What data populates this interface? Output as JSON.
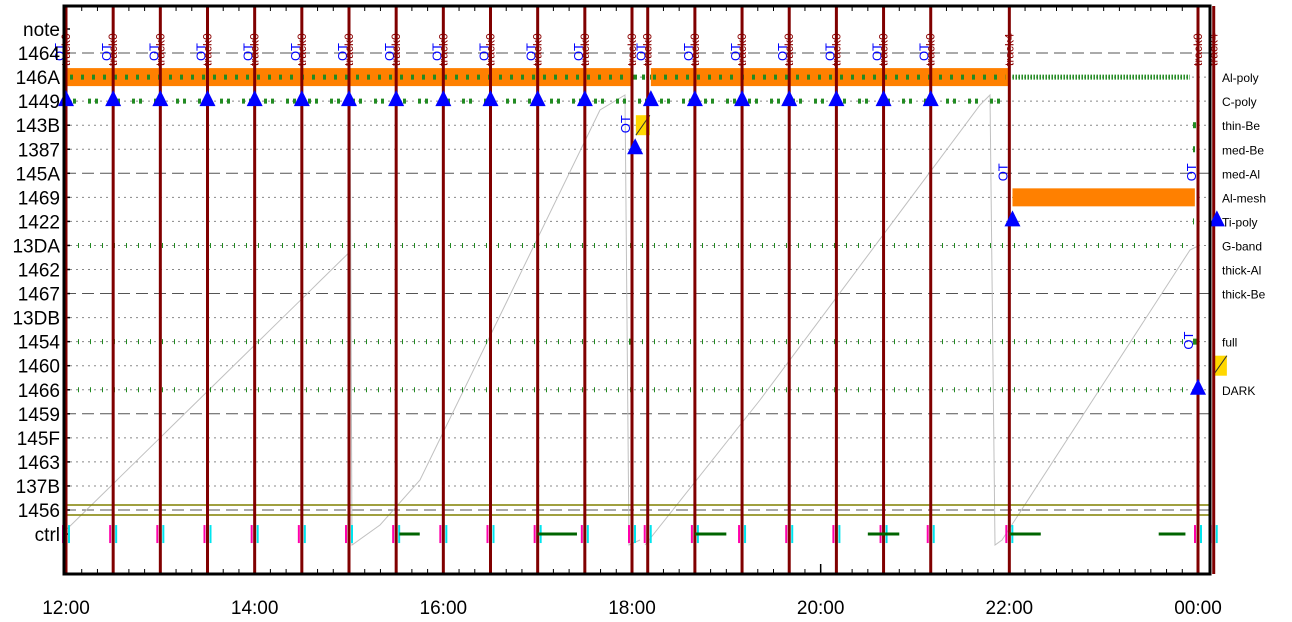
{
  "chart_data": {
    "type": "timeline",
    "x_range": [
      "12:00",
      "00:20"
    ],
    "x_ticks": [
      "12:00",
      "14:00",
      "16:00",
      "18:00",
      "20:00",
      "22:00",
      "00:00"
    ],
    "rows": [
      "note",
      "1464",
      "146A",
      "1449",
      "143B",
      "1387",
      "145A",
      "1469",
      "1422",
      "13DA",
      "1462",
      "1467",
      "13DB",
      "1454",
      "1460",
      "1466",
      "1459",
      "145F",
      "1463",
      "137B",
      "1456",
      "ctrl"
    ],
    "dashed_rows": [
      "1464",
      "145A",
      "1467",
      "1459",
      "1456"
    ],
    "right_labels": [
      {
        "row": "146A",
        "text": "Al-poly"
      },
      {
        "row": "1449",
        "text": "C-poly"
      },
      {
        "row": "143B",
        "text": "thin-Be"
      },
      {
        "row": "1387",
        "text": "med-Be"
      },
      {
        "row": "145A",
        "text": "med-Al"
      },
      {
        "row": "1469",
        "text": "Al-mesh"
      },
      {
        "row": "1422",
        "text": "Ti-poly"
      },
      {
        "row": "13DA",
        "text": "G-band"
      },
      {
        "row": "1462",
        "text": "thick-Al"
      },
      {
        "row": "1467",
        "text": "thick-Be"
      },
      {
        "row": "1454",
        "text": "full"
      },
      {
        "row": "1466",
        "text": "DARK"
      }
    ],
    "track_events": [
      {
        "time": "12:00",
        "label": "track0"
      },
      {
        "time": "12:30",
        "label": "track0"
      },
      {
        "time": "13:00",
        "label": "track0"
      },
      {
        "time": "13:30",
        "label": "track0"
      },
      {
        "time": "14:00",
        "label": "track0"
      },
      {
        "time": "14:30",
        "label": "track0"
      },
      {
        "time": "15:00",
        "label": "track0"
      },
      {
        "time": "15:30",
        "label": "track0"
      },
      {
        "time": "16:00",
        "label": "track0"
      },
      {
        "time": "16:30",
        "label": "track0"
      },
      {
        "time": "17:00",
        "label": "track0"
      },
      {
        "time": "17:30",
        "label": "track0"
      },
      {
        "time": "18:00",
        "label": "track0"
      },
      {
        "time": "18:10",
        "label": "track0"
      },
      {
        "time": "18:40",
        "label": "track0"
      },
      {
        "time": "19:10",
        "label": "track0"
      },
      {
        "time": "19:40",
        "label": "track0"
      },
      {
        "time": "20:10",
        "label": "track0"
      },
      {
        "time": "20:40",
        "label": "track0"
      },
      {
        "time": "21:10",
        "label": "track0"
      },
      {
        "time": "22:00",
        "label": "track4"
      },
      {
        "time": "00:00",
        "label": "track0"
      },
      {
        "time": "00:10",
        "label": "track4"
      }
    ],
    "orange_bars": [
      {
        "row": "146A",
        "start": "12:00",
        "end": "18:00"
      },
      {
        "row": "146A",
        "start": "18:12",
        "end": "22:00"
      },
      {
        "row": "1469",
        "start": "22:02",
        "end": "23:58"
      },
      {
        "row": "1469",
        "start": "00:10",
        "end": "00:14"
      }
    ],
    "yellow_marks": [
      {
        "row": "143B",
        "time": "18:05"
      },
      {
        "row": "1460",
        "time": "00:12"
      }
    ],
    "triangles": [
      {
        "row": "1449",
        "times": [
          "12:00",
          "12:30",
          "13:00",
          "13:30",
          "14:00",
          "14:30",
          "15:00",
          "15:30",
          "16:00",
          "16:30",
          "17:00",
          "17:30",
          "18:12",
          "18:40",
          "19:10",
          "19:40",
          "20:10",
          "20:40",
          "21:10"
        ]
      },
      {
        "row": "1387",
        "times": [
          "18:02"
        ]
      },
      {
        "row": "1422",
        "times": [
          "22:02",
          "00:12"
        ]
      },
      {
        "row": "1466",
        "times": [
          "00:00"
        ]
      }
    ],
    "ot_markers": [
      {
        "row": "1464",
        "times": [
          "12:00",
          "12:30",
          "13:00",
          "13:30",
          "14:00",
          "14:30",
          "15:00",
          "15:30",
          "16:00",
          "16:30",
          "17:00",
          "17:30",
          "18:10",
          "18:40",
          "19:10",
          "19:40",
          "20:10",
          "20:40",
          "21:10"
        ]
      },
      {
        "row": "143B",
        "times": [
          "18:00"
        ]
      },
      {
        "row": "145A",
        "times": [
          "22:00",
          "00:00"
        ]
      },
      {
        "row": "1454",
        "times": [
          "23:58"
        ]
      }
    ],
    "ctrl_segments": [
      {
        "start": "15:32",
        "end": "15:45"
      },
      {
        "start": "17:00",
        "end": "17:25"
      },
      {
        "start": "18:40",
        "end": "19:00"
      },
      {
        "start": "20:30",
        "end": "20:50"
      },
      {
        "start": "22:00",
        "end": "22:20"
      },
      {
        "start": "23:35",
        "end": "23:52"
      }
    ],
    "ot_text": "OT",
    "colors": {
      "frame": "#000000",
      "track_line": "#800000",
      "orange": "#ff8000",
      "green": "#228b22",
      "blue": "#0000ff",
      "yellow": "#ffd700",
      "grey": "#c0c0c0",
      "olive": "#808000",
      "magenta": "#ff00aa",
      "cyan": "#00e5ee"
    }
  }
}
